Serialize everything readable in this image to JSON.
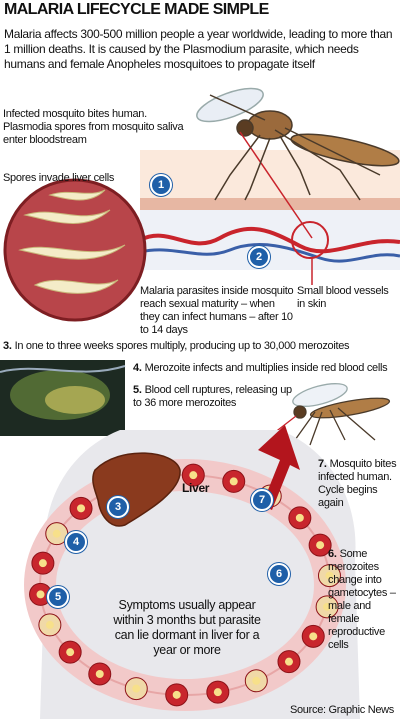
{
  "header": {
    "title": "MALARIA LIFECYCLE MADE SIMPLE",
    "intro": "Malaria affects 300-500 million people a year worldwide, leading to more than 1 million deaths. It is caused by the Plasmodium parasite, which needs humans and female Anopheles mosquitoes to propagate itself"
  },
  "notes": {
    "bite": "Infected mosquito bites human. Plasmodia spores from mosquito saliva enter bloodstream",
    "liver_cells": "Spores invade liver cells",
    "maturity": "Malaria parasites inside mosquito reach sexual maturity – when they can infect humans – after 10 to 14 days",
    "vessels": "Small blood vessels in skin",
    "liver": "Liver",
    "symptoms": "Symptoms usually appear within 3 months but parasite can lie dormant in liver for a year or more"
  },
  "steps": [
    {
      "number": "3.",
      "text": "In one to three weeks spores multiply, producing up to 30,000 merozoites"
    },
    {
      "number": "4.",
      "text": "Merozoite infects and multiplies inside red blood cells"
    },
    {
      "number": "5.",
      "text": "Blood cell ruptures, releasing up to 36 more merozoites"
    },
    {
      "number": "7.",
      "text": "Mosquito bites infected human. Cycle begins again"
    },
    {
      "number": "6.",
      "text": "Some merozoites change into gametocytes – male and female reproductive cells"
    }
  ],
  "badges": [
    "1",
    "2",
    "3",
    "4",
    "5",
    "6",
    "7"
  ],
  "source": "Source: Graphic News"
}
